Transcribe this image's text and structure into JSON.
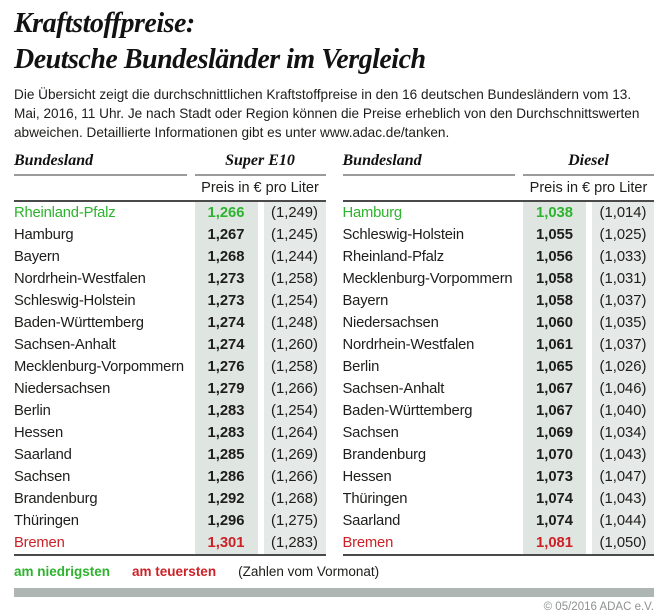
{
  "title": {
    "line1": "Kraftstoffpreise:",
    "line2": "Deutsche Bundesländer im Vergleich"
  },
  "description": "Die Übersicht zeigt die durchschnittlichen Kraftstoffpreise in den 16 deutschen Bundesländern vom 13. Mai, 2016, 11 Uhr. Je nach Stadt oder Region können die Preise erheblich von den Durchschnittswerten abweichen. Detaillierte Informationen gibt es unter www.adac.de/tanken.",
  "colors": {
    "green": "#2db32d",
    "red": "#cc2127",
    "shade_current": "#dfe6e2",
    "shade_previous": "#e5e9e7",
    "bar": "#aeb6b4"
  },
  "legend": {
    "lowest": "am niedrigsten",
    "highest": "am teuersten",
    "note": "(Zahlen vom Vormonat)"
  },
  "footer": {
    "copyright": "© 05/2016 ADAC e.V."
  },
  "chart_data": [
    {
      "type": "table",
      "title": "Super E10",
      "name_header": "Bundesland",
      "price_header": "Preis in € pro Liter",
      "rows": [
        {
          "name": "Rheinland-Pfalz",
          "price": "1,266",
          "prev": "(1,249)",
          "highlight": "low"
        },
        {
          "name": "Hamburg",
          "price": "1,267",
          "prev": "(1,245)"
        },
        {
          "name": "Bayern",
          "price": "1,268",
          "prev": "(1,244)"
        },
        {
          "name": "Nordrhein-Westfalen",
          "price": "1,273",
          "prev": "(1,258)"
        },
        {
          "name": "Schleswig-Holstein",
          "price": "1,273",
          "prev": "(1,254)"
        },
        {
          "name": "Baden-Württemberg",
          "price": "1,274",
          "prev": "(1,248)"
        },
        {
          "name": "Sachsen-Anhalt",
          "price": "1,274",
          "prev": "(1,260)"
        },
        {
          "name": "Mecklenburg-Vorpommern",
          "price": "1,276",
          "prev": "(1,258)"
        },
        {
          "name": "Niedersachsen",
          "price": "1,279",
          "prev": "(1,266)"
        },
        {
          "name": "Berlin",
          "price": "1,283",
          "prev": "(1,254)"
        },
        {
          "name": "Hessen",
          "price": "1,283",
          "prev": "(1,264)"
        },
        {
          "name": "Saarland",
          "price": "1,285",
          "prev": "(1,269)"
        },
        {
          "name": "Sachsen",
          "price": "1,286",
          "prev": "(1,266)"
        },
        {
          "name": "Brandenburg",
          "price": "1,292",
          "prev": "(1,268)"
        },
        {
          "name": "Thüringen",
          "price": "1,296",
          "prev": "(1,275)"
        },
        {
          "name": "Bremen",
          "price": "1,301",
          "prev": "(1,283)",
          "highlight": "high"
        }
      ]
    },
    {
      "type": "table",
      "title": "Diesel",
      "name_header": "Bundesland",
      "price_header": "Preis in € pro Liter",
      "rows": [
        {
          "name": "Hamburg",
          "price": "1,038",
          "prev": "(1,014)",
          "highlight": "low"
        },
        {
          "name": "Schleswig-Holstein",
          "price": "1,055",
          "prev": "(1,025)"
        },
        {
          "name": "Rheinland-Pfalz",
          "price": "1,056",
          "prev": "(1,033)"
        },
        {
          "name": "Mecklenburg-Vorpommern",
          "price": "1,058",
          "prev": "(1,031)"
        },
        {
          "name": "Bayern",
          "price": "1,058",
          "prev": "(1,037)"
        },
        {
          "name": "Niedersachsen",
          "price": "1,060",
          "prev": "(1,035)"
        },
        {
          "name": "Nordrhein-Westfalen",
          "price": "1,061",
          "prev": "(1,037)"
        },
        {
          "name": "Berlin",
          "price": "1,065",
          "prev": "(1,026)"
        },
        {
          "name": "Sachsen-Anhalt",
          "price": "1,067",
          "prev": "(1,046)"
        },
        {
          "name": "Baden-Württemberg",
          "price": "1,067",
          "prev": "(1,040)"
        },
        {
          "name": "Sachsen",
          "price": "1,069",
          "prev": "(1,034)"
        },
        {
          "name": "Brandenburg",
          "price": "1,070",
          "prev": "(1,043)"
        },
        {
          "name": "Hessen",
          "price": "1,073",
          "prev": "(1,047)"
        },
        {
          "name": "Thüringen",
          "price": "1,074",
          "prev": "(1,043)"
        },
        {
          "name": "Saarland",
          "price": "1,074",
          "prev": "(1,044)"
        },
        {
          "name": "Bremen",
          "price": "1,081",
          "prev": "(1,050)",
          "highlight": "high"
        }
      ]
    }
  ]
}
